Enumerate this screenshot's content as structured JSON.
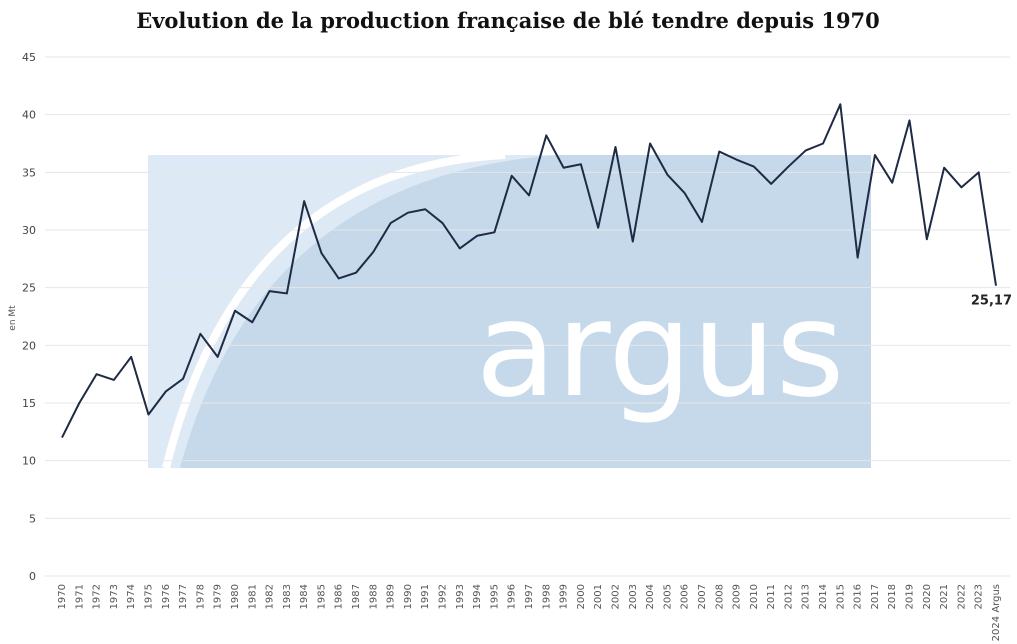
{
  "chart_data": {
    "type": "line",
    "title": "Evolution de la production française de blé tendre depuis 1970",
    "y_label": "en Mt",
    "watermark": "argus",
    "categories": [
      "1970",
      "1971",
      "1972",
      "1973",
      "1974",
      "1975",
      "1976",
      "1977",
      "1978",
      "1979",
      "1980",
      "1981",
      "1982",
      "1983",
      "1984",
      "1985",
      "1986",
      "1987",
      "1988",
      "1989",
      "1990",
      "1991",
      "1992",
      "1993",
      "1994",
      "1995",
      "1996",
      "1997",
      "1998",
      "1999",
      "2000",
      "2001",
      "2002",
      "2003",
      "2004",
      "2005",
      "2006",
      "2007",
      "2008",
      "2009",
      "2010",
      "2011",
      "2012",
      "2013",
      "2014",
      "2015",
      "2016",
      "2017",
      "2018",
      "2019",
      "2020",
      "2021",
      "2022",
      "2023",
      "2024 Argus"
    ],
    "values": [
      12.0,
      15.0,
      17.5,
      17.0,
      19.0,
      14.0,
      16.0,
      17.1,
      21.0,
      19.0,
      23.0,
      22.0,
      24.7,
      24.5,
      32.5,
      28.0,
      25.8,
      26.3,
      28.1,
      30.6,
      31.5,
      31.8,
      30.6,
      28.4,
      29.5,
      29.8,
      34.7,
      33.0,
      38.2,
      35.4,
      35.7,
      30.2,
      37.2,
      29.0,
      37.5,
      34.8,
      33.2,
      30.7,
      36.8,
      36.1,
      35.5,
      34.0,
      35.5,
      36.9,
      37.5,
      40.9,
      27.6,
      36.5,
      34.1,
      39.5,
      29.2,
      35.4,
      33.7,
      35.0,
      25.17
    ],
    "value_labels": [
      null,
      null,
      null,
      null,
      null,
      null,
      null,
      null,
      null,
      null,
      null,
      null,
      null,
      null,
      null,
      null,
      null,
      null,
      null,
      null,
      null,
      null,
      null,
      null,
      null,
      null,
      null,
      null,
      null,
      null,
      null,
      null,
      null,
      null,
      null,
      null,
      null,
      null,
      null,
      null,
      null,
      null,
      null,
      null,
      null,
      null,
      null,
      null,
      null,
      null,
      null,
      null,
      null,
      null,
      "25,17"
    ],
    "color": "#1f2a44",
    "ylim": [
      0,
      45
    ],
    "yticks": [
      0,
      5,
      10,
      15,
      20,
      25,
      30,
      35,
      40,
      45
    ],
    "grid": true
  }
}
